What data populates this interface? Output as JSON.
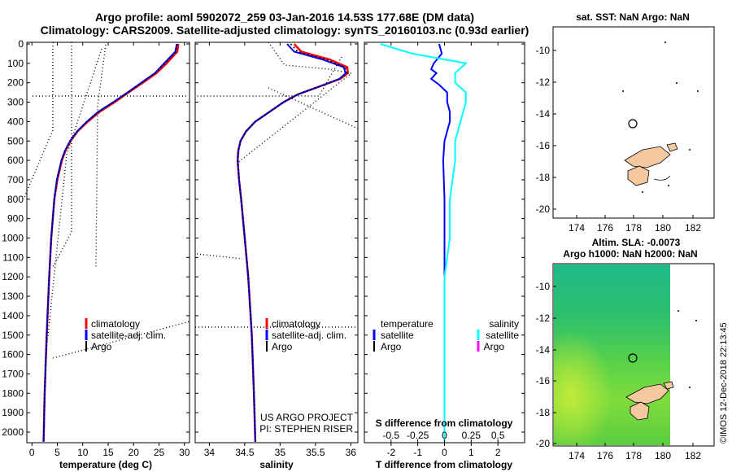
{
  "titles": {
    "line1": "Argo profile: aoml 5902072_259 03-Jan-2016 14.53S 177.68E (DM data)",
    "line2": "Climatology: CARS2009. Satellite-adjusted climatology: synTS_20160103.nc (0.93d earlier)"
  },
  "depth_axis": {
    "ticks": [
      0,
      100,
      200,
      300,
      400,
      500,
      600,
      700,
      800,
      900,
      1000,
      1100,
      1200,
      1300,
      1400,
      1500,
      1600,
      1700,
      1800,
      1900,
      2000
    ],
    "labels": [
      "0",
      "100",
      "200",
      "300",
      "400",
      "500",
      "600",
      "700",
      "800",
      "900",
      "1000",
      "1100",
      "1200",
      "1300",
      "1400",
      "1500",
      "1600",
      "1700",
      "1800",
      "1900",
      "2000"
    ],
    "range": [
      0,
      2050
    ]
  },
  "colors": {
    "climatology": "#ff0000",
    "satellite": "#0000ff",
    "argo": "#000000",
    "salinity_satellite": "#00ffff",
    "salinity_argo": "#ff00ff",
    "land": "#f5c8a0"
  },
  "chart_data": [
    {
      "type": "line",
      "id": "temperature",
      "xlabel": "temperature (deg C)",
      "xlim": [
        -1,
        31
      ],
      "x_ticks": [
        0,
        5,
        10,
        15,
        20,
        25,
        30
      ],
      "x_tick_labels": [
        "0",
        "5",
        "10",
        "15",
        "20",
        "25",
        "30"
      ],
      "legend": [
        "climatology",
        "satellite-adj. clim.",
        "Argo"
      ],
      "series": [
        {
          "name": "climatology",
          "color": "#ff0000",
          "depth": [
            0,
            40,
            100,
            150,
            200,
            250,
            300,
            350,
            400,
            450,
            500,
            550,
            600,
            700,
            800,
            1000,
            1200,
            1500,
            1800,
            2050
          ],
          "values": [
            28.8,
            28.6,
            26.5,
            24.5,
            21.8,
            19.0,
            16.3,
            13.3,
            11.0,
            9.0,
            7.6,
            6.6,
            5.9,
            5.0,
            4.4,
            3.8,
            3.4,
            2.9,
            2.5,
            2.3
          ]
        },
        {
          "name": "satellite-adj. clim.",
          "color": "#0000ff",
          "depth": [
            0,
            40,
            100,
            150,
            200,
            250,
            300,
            350,
            400,
            450,
            500,
            550,
            600,
            700,
            800,
            1000,
            1200,
            1500,
            1800,
            2050
          ],
          "values": [
            28.5,
            28.2,
            26.0,
            24.2,
            21.5,
            18.8,
            16.0,
            13.0,
            10.8,
            8.9,
            7.5,
            6.5,
            5.8,
            4.9,
            4.4,
            3.8,
            3.4,
            2.9,
            2.5,
            2.3
          ]
        },
        {
          "name": "Argo",
          "color": "#000000",
          "depth": [
            0,
            40,
            100,
            150,
            200,
            250,
            300,
            350,
            400,
            450,
            500,
            550,
            600,
            700,
            800,
            1000,
            1200,
            1500,
            1800,
            2050
          ],
          "values": [
            28.6,
            28.4,
            26.2,
            24.3,
            21.6,
            18.9,
            16.1,
            13.1,
            10.9,
            8.9,
            7.5,
            6.5,
            5.8,
            4.9,
            4.4,
            3.8,
            3.4,
            2.9,
            2.5,
            2.3
          ]
        }
      ]
    },
    {
      "type": "line",
      "id": "salinity",
      "xlabel": "salinity",
      "xlim": [
        33.8,
        36.1
      ],
      "x_ticks": [
        34,
        34.5,
        35,
        35.5,
        36
      ],
      "x_tick_labels": [
        "34",
        "34.5",
        "35",
        "35.5",
        "36"
      ],
      "legend": [
        "climatology",
        "satellite-adj. clim.",
        "Argo"
      ],
      "annotations": [
        "US ARGO PROJECT",
        "PI: STEPHEN RISER"
      ],
      "series": [
        {
          "name": "climatology",
          "color": "#ff0000",
          "depth": [
            0,
            40,
            80,
            120,
            150,
            180,
            220,
            260,
            300,
            350,
            400,
            450,
            500,
            550,
            600,
            700,
            800,
            1000,
            1200,
            1500,
            1800,
            2050
          ],
          "values": [
            35.2,
            35.3,
            35.7,
            35.95,
            35.96,
            35.85,
            35.55,
            35.25,
            35.05,
            34.85,
            34.65,
            34.52,
            34.44,
            34.41,
            34.4,
            34.42,
            34.45,
            34.5,
            34.55,
            34.6,
            34.63,
            34.65
          ]
        },
        {
          "name": "satellite-adj. clim.",
          "color": "#0000ff",
          "depth": [
            0,
            40,
            80,
            120,
            150,
            180,
            220,
            260,
            300,
            350,
            400,
            450,
            500,
            550,
            600,
            700,
            800,
            1000,
            1200,
            1500,
            1800,
            2050
          ],
          "values": [
            35.1,
            35.2,
            35.6,
            35.9,
            35.93,
            35.84,
            35.55,
            35.25,
            35.05,
            34.85,
            34.65,
            34.52,
            34.44,
            34.41,
            34.4,
            34.42,
            34.45,
            34.5,
            34.55,
            34.6,
            34.63,
            34.65
          ]
        },
        {
          "name": "Argo",
          "color": "#000000",
          "depth": [
            0,
            40,
            80,
            120,
            150,
            180,
            220,
            260,
            300,
            350,
            400,
            450,
            500,
            550,
            600,
            700,
            800,
            1000,
            1200,
            1500,
            1800,
            2050
          ],
          "values": [
            35.15,
            35.25,
            35.65,
            35.92,
            35.95,
            35.84,
            35.55,
            35.25,
            35.05,
            34.85,
            34.65,
            34.52,
            34.44,
            34.41,
            34.4,
            34.42,
            34.45,
            34.5,
            34.55,
            34.6,
            34.63,
            34.65
          ]
        }
      ]
    },
    {
      "type": "line",
      "id": "difference",
      "xlabel": "T difference from climatology",
      "xlabel_top": "S difference from climatology",
      "xlim": [
        -3,
        3
      ],
      "x_ticks": [
        -2,
        -1,
        0,
        1,
        2
      ],
      "x_tick_labels": [
        "-2",
        "-1",
        "0",
        "1",
        "2"
      ],
      "s_ticks": [
        -0.5,
        -0.25,
        0,
        0.25,
        0.5
      ],
      "s_tick_labels": [
        "-0.5",
        "-0.25",
        "0",
        "0.25",
        "0.5"
      ],
      "legend_temperature": [
        "temperature",
        "satellite",
        "Argo"
      ],
      "legend_salinity": [
        "salinity",
        "satellite",
        "Argo"
      ],
      "series": [
        {
          "name": "T satellite",
          "color": "#0000ff",
          "depth": [
            0,
            50,
            100,
            130,
            150,
            180,
            210,
            250,
            300,
            350,
            400,
            450,
            500,
            600,
            800,
            1000,
            1200,
            1500,
            2050
          ],
          "values": [
            -0.2,
            -0.1,
            -0.4,
            -0.5,
            -0.3,
            -0.5,
            -0.2,
            0.1,
            0.1,
            0.2,
            0.2,
            0.1,
            0.0,
            -0.05,
            0.0,
            0.0,
            0.0,
            0.0,
            0.0
          ]
        },
        {
          "name": "S satellite",
          "color": "#00ffff",
          "depth": [
            0,
            50,
            100,
            150,
            200,
            250,
            300,
            400,
            500,
            600,
            800,
            1000,
            1200,
            1500,
            2050
          ],
          "values": [
            -0.6,
            -0.3,
            0.2,
            0.1,
            0.1,
            0.2,
            0.2,
            0.15,
            0.1,
            0.1,
            0.05,
            0.05,
            0.0,
            0.0,
            0.0
          ]
        }
      ]
    }
  ],
  "maps": {
    "top": {
      "title": "sat. SST: NaN Argo: NaN",
      "x_ticks": [
        "174",
        "176",
        "178",
        "180",
        "182"
      ],
      "y_ticks": [
        "-10",
        "-12",
        "-14",
        "-16",
        "-18",
        "-20"
      ]
    },
    "bottom": {
      "title1": "Altim. SLA: -0.0073",
      "title2": "Argo h1000: NaN h2000: NaN",
      "x_ticks": [
        "174",
        "176",
        "178",
        "180",
        "182"
      ],
      "y_ticks": [
        "-10",
        "-12",
        "-14",
        "-16",
        "-18",
        "-20"
      ]
    }
  },
  "credit": "©IMOS 12-Dec-2018 22:13:45"
}
